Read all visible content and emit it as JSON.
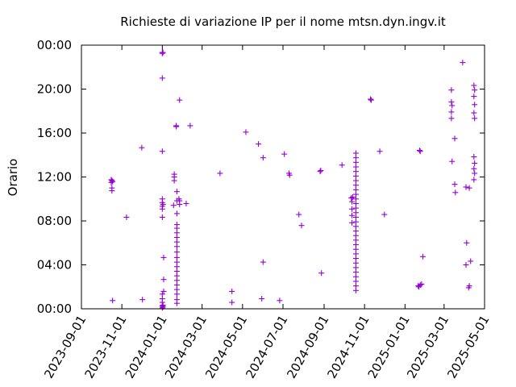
{
  "chart_data": {
    "type": "scatter",
    "title": "Richieste di variazione IP per il nome mtsn.dyn.ingv.it",
    "xlabel": "",
    "ylabel": "Orario",
    "x_axis_kind": "date",
    "xlim": [
      "2023-09-01",
      "2025-05-01"
    ],
    "ylim": [
      "00:00",
      "24:00"
    ],
    "x_tick_labels": [
      "2023-09-01",
      "2023-11-01",
      "2024-01-01",
      "2024-03-01",
      "2024-05-01",
      "2024-07-01",
      "2024-09-01",
      "2024-11-01",
      "2025-01-01",
      "2025-03-01",
      "2025-05-01"
    ],
    "y_tick_labels": [
      "00:00",
      "04:00",
      "08:00",
      "12:00",
      "16:00",
      "20:00",
      "00:00"
    ],
    "y_tick_values": [
      "00:00",
      "04:00",
      "08:00",
      "12:00",
      "16:00",
      "20:00",
      "24:00"
    ],
    "grid": false,
    "marker": "+",
    "color": "#9400d3",
    "points": [
      [
        "2023-10-16",
        "11:45"
      ],
      [
        "2023-10-16",
        "11:30"
      ],
      [
        "2023-10-17",
        "11:00"
      ],
      [
        "2023-10-17",
        "10:45"
      ],
      [
        "2023-10-17",
        "11:40"
      ],
      [
        "2023-10-18",
        "11:35"
      ],
      [
        "2023-10-18",
        "00:45"
      ],
      [
        "2023-11-08",
        "08:20"
      ],
      [
        "2023-12-01",
        "14:40"
      ],
      [
        "2023-12-02",
        "00:50"
      ],
      [
        "2024-01-01",
        "14:20"
      ],
      [
        "2024-01-01",
        "21:00"
      ],
      [
        "2024-01-01",
        "23:20"
      ],
      [
        "2024-01-01",
        "23:15"
      ],
      [
        "2024-01-01",
        "10:00"
      ],
      [
        "2024-01-01",
        "09:40"
      ],
      [
        "2024-01-01",
        "09:20"
      ],
      [
        "2024-01-01",
        "09:05"
      ],
      [
        "2024-01-01",
        "08:20"
      ],
      [
        "2024-01-01",
        "01:20"
      ],
      [
        "2024-01-01",
        "00:55"
      ],
      [
        "2024-01-01",
        "00:35"
      ],
      [
        "2024-01-01",
        "00:15"
      ],
      [
        "2024-01-01",
        "00:05"
      ],
      [
        "2024-01-02",
        "23:20"
      ],
      [
        "2024-01-02",
        "00:10"
      ],
      [
        "2024-01-02",
        "00:20"
      ],
      [
        "2024-01-02",
        "09:30"
      ],
      [
        "2024-01-03",
        "02:40"
      ],
      [
        "2024-01-03",
        "01:35"
      ],
      [
        "2024-01-03",
        "04:40"
      ],
      [
        "2024-01-18",
        "09:25"
      ],
      [
        "2024-01-19",
        "12:15"
      ],
      [
        "2024-01-19",
        "12:00"
      ],
      [
        "2024-01-19",
        "11:40"
      ],
      [
        "2024-01-22",
        "16:40"
      ],
      [
        "2024-01-22",
        "16:35"
      ],
      [
        "2024-01-23",
        "10:40"
      ],
      [
        "2024-01-23",
        "08:40"
      ],
      [
        "2024-01-23",
        "09:50"
      ],
      [
        "2024-01-23",
        "07:40"
      ],
      [
        "2024-01-23",
        "07:20"
      ],
      [
        "2024-01-23",
        "06:55"
      ],
      [
        "2024-01-23",
        "06:30"
      ],
      [
        "2024-01-23",
        "06:05"
      ],
      [
        "2024-01-23",
        "05:40"
      ],
      [
        "2024-01-23",
        "05:10"
      ],
      [
        "2024-01-23",
        "04:40"
      ],
      [
        "2024-01-23",
        "04:15"
      ],
      [
        "2024-01-23",
        "03:50"
      ],
      [
        "2024-01-23",
        "03:25"
      ],
      [
        "2024-01-23",
        "03:00"
      ],
      [
        "2024-01-23",
        "02:35"
      ],
      [
        "2024-01-23",
        "02:10"
      ],
      [
        "2024-01-23",
        "01:45"
      ],
      [
        "2024-01-23",
        "01:20"
      ],
      [
        "2024-01-23",
        "00:50"
      ],
      [
        "2024-01-23",
        "00:30"
      ],
      [
        "2024-01-26",
        "10:00"
      ],
      [
        "2024-01-27",
        "09:50"
      ],
      [
        "2024-01-27",
        "09:30"
      ],
      [
        "2024-01-27",
        "19:00"
      ],
      [
        "2024-02-06",
        "09:35"
      ],
      [
        "2024-02-12",
        "16:40"
      ],
      [
        "2024-03-28",
        "12:20"
      ],
      [
        "2024-04-15",
        "01:35"
      ],
      [
        "2024-04-15",
        "00:35"
      ],
      [
        "2024-05-06",
        "16:05"
      ],
      [
        "2024-05-25",
        "15:00"
      ],
      [
        "2024-05-30",
        "00:55"
      ],
      [
        "2024-06-01",
        "13:45"
      ],
      [
        "2024-06-01",
        "04:15"
      ],
      [
        "2024-06-26",
        "00:45"
      ],
      [
        "2024-07-03",
        "14:05"
      ],
      [
        "2024-07-10",
        "12:20"
      ],
      [
        "2024-07-11",
        "12:10"
      ],
      [
        "2024-07-25",
        "08:35"
      ],
      [
        "2024-07-29",
        "07:35"
      ],
      [
        "2024-08-26",
        "12:30"
      ],
      [
        "2024-08-27",
        "12:35"
      ],
      [
        "2024-08-28",
        "03:15"
      ],
      [
        "2024-09-28",
        "13:05"
      ],
      [
        "2024-10-12",
        "10:05"
      ],
      [
        "2024-10-13",
        "09:45"
      ],
      [
        "2024-10-13",
        "09:05"
      ],
      [
        "2024-10-13",
        "08:30"
      ],
      [
        "2024-10-13",
        "07:50"
      ],
      [
        "2024-10-14",
        "10:10"
      ],
      [
        "2024-10-19",
        "14:10"
      ],
      [
        "2024-10-19",
        "13:45"
      ],
      [
        "2024-10-19",
        "13:20"
      ],
      [
        "2024-10-19",
        "12:55"
      ],
      [
        "2024-10-19",
        "12:30"
      ],
      [
        "2024-10-19",
        "12:05"
      ],
      [
        "2024-10-19",
        "11:40"
      ],
      [
        "2024-10-19",
        "11:15"
      ],
      [
        "2024-10-19",
        "10:50"
      ],
      [
        "2024-10-19",
        "10:25"
      ],
      [
        "2024-10-19",
        "10:00"
      ],
      [
        "2024-10-19",
        "09:35"
      ],
      [
        "2024-10-19",
        "09:10"
      ],
      [
        "2024-10-19",
        "08:45"
      ],
      [
        "2024-10-19",
        "08:20"
      ],
      [
        "2024-10-19",
        "07:55"
      ],
      [
        "2024-10-19",
        "07:30"
      ],
      [
        "2024-10-19",
        "07:05"
      ],
      [
        "2024-10-19",
        "06:40"
      ],
      [
        "2024-10-19",
        "06:15"
      ],
      [
        "2024-10-19",
        "05:50"
      ],
      [
        "2024-10-19",
        "05:25"
      ],
      [
        "2024-10-19",
        "05:00"
      ],
      [
        "2024-10-19",
        "04:35"
      ],
      [
        "2024-10-19",
        "04:10"
      ],
      [
        "2024-10-19",
        "03:45"
      ],
      [
        "2024-10-19",
        "03:20"
      ],
      [
        "2024-10-19",
        "02:55"
      ],
      [
        "2024-10-19",
        "02:30"
      ],
      [
        "2024-10-19",
        "02:05"
      ],
      [
        "2024-10-19",
        "01:40"
      ],
      [
        "2024-11-10",
        "19:05"
      ],
      [
        "2024-11-11",
        "19:00"
      ],
      [
        "2024-11-24",
        "14:20"
      ],
      [
        "2024-12-01",
        "08:35"
      ],
      [
        "2025-01-23",
        "14:25"
      ],
      [
        "2025-01-24",
        "14:20"
      ],
      [
        "2025-01-21",
        "02:05"
      ],
      [
        "2025-01-22",
        "02:00"
      ],
      [
        "2025-01-24",
        "02:10"
      ],
      [
        "2025-01-26",
        "02:15"
      ],
      [
        "2025-01-28",
        "04:45"
      ],
      [
        "2025-03-12",
        "19:55"
      ],
      [
        "2025-03-12",
        "18:50"
      ],
      [
        "2025-03-13",
        "18:30"
      ],
      [
        "2025-03-12",
        "17:55"
      ],
      [
        "2025-03-12",
        "17:20"
      ],
      [
        "2025-03-13",
        "13:25"
      ],
      [
        "2025-03-17",
        "15:30"
      ],
      [
        "2025-03-17",
        "11:20"
      ],
      [
        "2025-03-18",
        "10:35"
      ],
      [
        "2025-03-29",
        "22:25"
      ],
      [
        "2025-04-03",
        "11:05"
      ],
      [
        "2025-04-08",
        "11:00"
      ],
      [
        "2025-04-03",
        "04:00"
      ],
      [
        "2025-04-04",
        "06:00"
      ],
      [
        "2025-04-07",
        "01:55"
      ],
      [
        "2025-04-08",
        "02:05"
      ],
      [
        "2025-04-10",
        "04:20"
      ],
      [
        "2025-04-15",
        "20:20"
      ],
      [
        "2025-04-16",
        "19:55"
      ],
      [
        "2025-04-15",
        "19:20"
      ],
      [
        "2025-04-16",
        "18:35"
      ],
      [
        "2025-04-15",
        "17:50"
      ],
      [
        "2025-04-16",
        "17:20"
      ],
      [
        "2025-04-15",
        "13:50"
      ],
      [
        "2025-04-16",
        "13:15"
      ],
      [
        "2025-04-15",
        "12:45"
      ],
      [
        "2025-04-16",
        "12:20"
      ],
      [
        "2025-04-15",
        "11:45"
      ]
    ]
  }
}
